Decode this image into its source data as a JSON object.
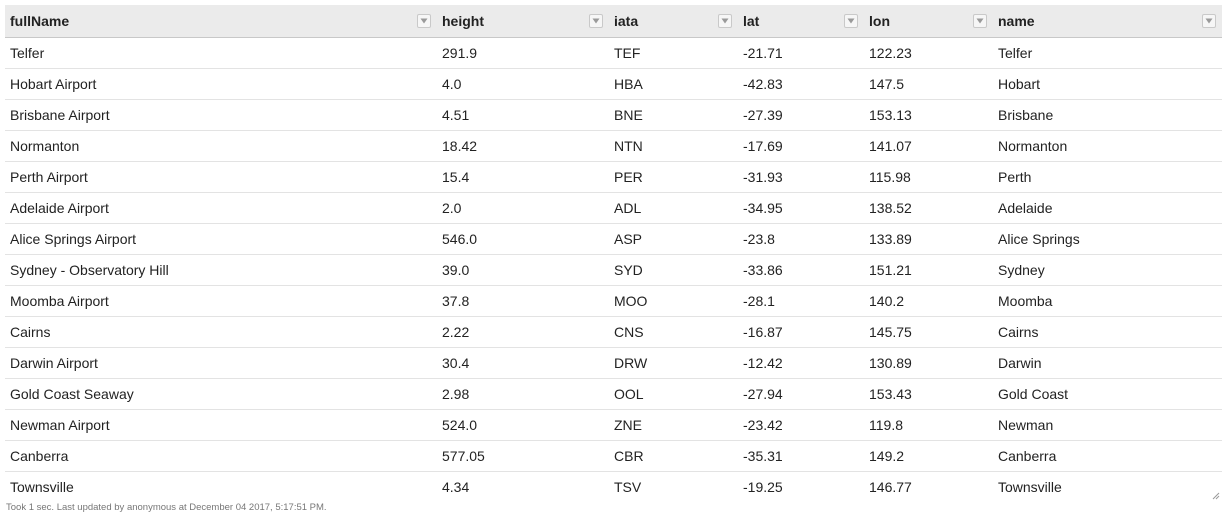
{
  "table": {
    "columns": [
      {
        "label": "fullName",
        "filter_icon": "chevron-down-icon"
      },
      {
        "label": "height",
        "filter_icon": "chevron-down-icon"
      },
      {
        "label": "iata",
        "filter_icon": "chevron-down-icon"
      },
      {
        "label": "lat",
        "filter_icon": "chevron-down-icon"
      },
      {
        "label": "lon",
        "filter_icon": "chevron-down-icon"
      },
      {
        "label": "name",
        "filter_icon": "chevron-down-icon"
      }
    ],
    "rows": [
      [
        "Telfer",
        "291.9",
        "TEF",
        "-21.71",
        "122.23",
        "Telfer"
      ],
      [
        "Hobart Airport",
        "4.0",
        "HBA",
        "-42.83",
        "147.5",
        "Hobart"
      ],
      [
        "Brisbane Airport",
        "4.51",
        "BNE",
        "-27.39",
        "153.13",
        "Brisbane"
      ],
      [
        "Normanton",
        "18.42",
        "NTN",
        "-17.69",
        "141.07",
        "Normanton"
      ],
      [
        "Perth Airport",
        "15.4",
        "PER",
        "-31.93",
        "115.98",
        "Perth"
      ],
      [
        "Adelaide Airport",
        "2.0",
        "ADL",
        "-34.95",
        "138.52",
        "Adelaide"
      ],
      [
        "Alice Springs Airport",
        "546.0",
        "ASP",
        "-23.8",
        "133.89",
        "Alice Springs"
      ],
      [
        "Sydney - Observatory Hill",
        "39.0",
        "SYD",
        "-33.86",
        "151.21",
        "Sydney"
      ],
      [
        "Moomba Airport",
        "37.8",
        "MOO",
        "-28.1",
        "140.2",
        "Moomba"
      ],
      [
        "Cairns",
        "2.22",
        "CNS",
        "-16.87",
        "145.75",
        "Cairns"
      ],
      [
        "Darwin Airport",
        "30.4",
        "DRW",
        "-12.42",
        "130.89",
        "Darwin"
      ],
      [
        "Gold Coast Seaway",
        "2.98",
        "OOL",
        "-27.94",
        "153.43",
        "Gold Coast"
      ],
      [
        "Newman Airport",
        "524.0",
        "ZNE",
        "-23.42",
        "119.8",
        "Newman"
      ],
      [
        "Canberra",
        "577.05",
        "CBR",
        "-35.31",
        "149.2",
        "Canberra"
      ],
      [
        "Townsville",
        "4.34",
        "TSV",
        "-19.25",
        "146.77",
        "Townsville"
      ]
    ]
  },
  "footer": {
    "status": "Took 1 sec. Last updated by anonymous at December 04 2017, 5:17:51 PM."
  },
  "colors": {
    "header_bg": "#ebebeb",
    "row_border": "#e3e3e3",
    "text": "#222222",
    "footer_text": "#777777"
  },
  "icons": {
    "resize": "resize-handle-icon"
  }
}
